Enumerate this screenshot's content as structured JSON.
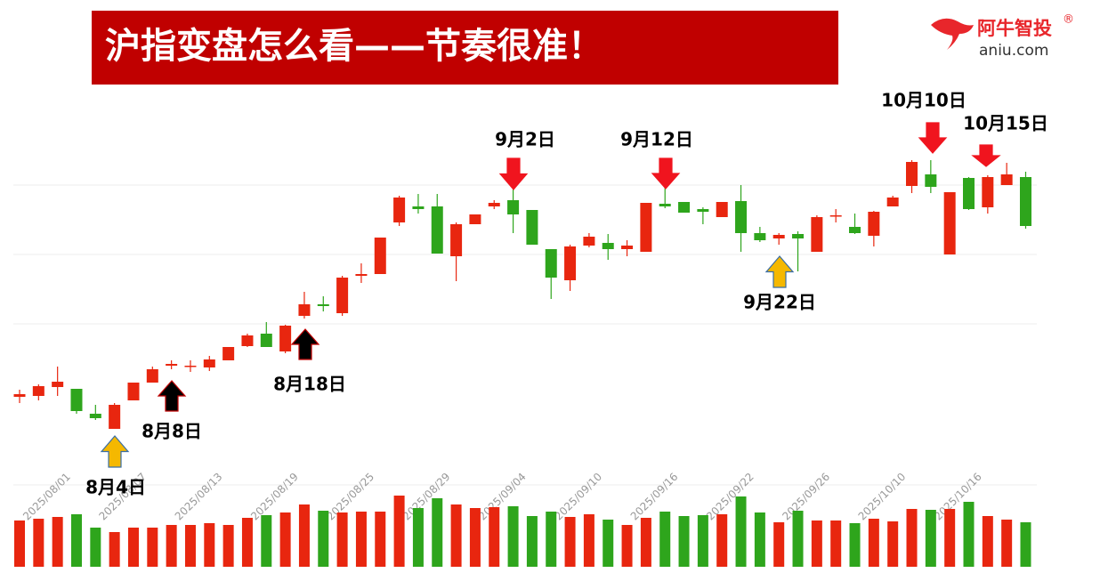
{
  "chart_data": {
    "type": "candlestick",
    "title": "沪指变盘怎么看——节奏很准！",
    "categories": [
      null,
      null,
      null,
      null,
      "2025/08/01",
      null,
      null,
      null,
      "2025/08/07",
      null,
      null,
      null,
      "2025/08/13",
      null,
      null,
      null,
      "2025/08/19",
      null,
      null,
      null,
      "2025/08/25",
      null,
      null,
      null,
      "2025/08/29",
      null,
      null,
      null,
      "2025/09/04",
      null,
      null,
      null,
      "2025/09/10",
      null,
      null,
      null,
      "2025/09/16",
      null,
      null,
      null,
      "2025/09/22",
      null,
      null,
      null,
      "2025/09/26",
      null,
      null,
      null,
      "2025/10/10",
      null,
      null,
      null,
      "2025/10/16",
      null
    ],
    "open": [
      54,
      55,
      65,
      63,
      35,
      18,
      50,
      70,
      89,
      88,
      87,
      95,
      111,
      125,
      105,
      145,
      158,
      148,
      190,
      192,
      250,
      268,
      268,
      212,
      248,
      268,
      275,
      264,
      220,
      185,
      224,
      227,
      220,
      217,
      271,
      273,
      265,
      256,
      274,
      238,
      232,
      237,
      217,
      257,
      245,
      235,
      268,
      291,
      304,
      214,
      300,
      267,
      292,
      301
    ],
    "high": [
      62,
      68,
      88,
      63,
      45,
      47,
      70,
      88,
      95,
      95,
      100,
      110,
      125,
      138,
      135,
      172,
      167,
      190,
      204,
      233,
      280,
      282,
      282,
      250,
      259,
      275,
      287,
      264,
      220,
      225,
      238,
      237,
      230,
      272,
      289,
      273,
      267,
      273,
      292,
      245,
      238,
      240,
      258,
      265,
      260,
      263,
      280,
      320,
      320,
      284,
      301,
      303,
      317,
      307
    ],
    "low": [
      47,
      50,
      55,
      35,
      28,
      18,
      50,
      70,
      85,
      82,
      83,
      95,
      110,
      110,
      103,
      142,
      150,
      145,
      182,
      192,
      246,
      260,
      215,
      184,
      248,
      265,
      238,
      225,
      164,
      173,
      222,
      208,
      212,
      217,
      266,
      261,
      248,
      256,
      217,
      228,
      225,
      195,
      217,
      250,
      237,
      223,
      268,
      283,
      283,
      214,
      264,
      260,
      292,
      243
    ],
    "close": [
      57,
      66,
      71,
      38,
      30,
      45,
      70,
      85,
      91,
      89,
      96,
      110,
      123,
      110,
      134,
      158,
      156,
      188,
      192,
      233,
      278,
      265,
      215,
      248,
      259,
      272,
      259,
      225,
      188,
      223,
      234,
      220,
      224,
      272,
      268,
      261,
      262,
      273,
      238,
      230,
      236,
      232,
      256,
      258,
      238,
      262,
      278,
      318,
      290,
      284,
      265,
      301,
      304,
      246
    ],
    "volume": [
      52,
      54,
      56,
      59,
      44,
      39,
      44,
      44,
      47,
      47,
      49,
      47,
      55,
      58,
      61,
      70,
      63,
      61,
      62,
      62,
      80,
      66,
      77,
      70,
      66,
      67,
      68,
      57,
      62,
      56,
      59,
      53,
      47,
      55,
      62,
      57,
      58,
      59,
      79,
      61,
      50,
      63,
      52,
      52,
      49,
      54,
      51,
      65,
      64,
      65,
      73,
      57,
      53,
      50
    ],
    "ylim": [
      0,
      330
    ],
    "volume_ylim": [
      0,
      100
    ],
    "up_color": "#e8260f",
    "down_color": "#2ea51c",
    "annotations": [
      {
        "text": "8月4日",
        "color": "#f5b800"
      },
      {
        "text": "8月8日",
        "color": "#000000"
      },
      {
        "text": "8月18日",
        "color": "#000000"
      },
      {
        "text": "9月2日",
        "color": "#f0141e"
      },
      {
        "text": "9月12日",
        "color": "#f0141e"
      },
      {
        "text": "9月22日",
        "color": "#f5b800"
      },
      {
        "text": "10月10日",
        "color": "#f0141e"
      },
      {
        "text": "10月15日",
        "color": "#f0141e"
      }
    ]
  },
  "logo": {
    "name": "阿牛智投",
    "mark": "®",
    "site": "aniu.com"
  }
}
